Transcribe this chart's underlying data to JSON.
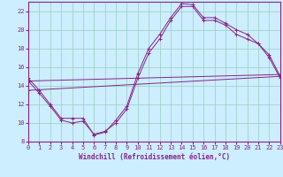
{
  "xlabel": "Windchill (Refroidissement éolien,°C)",
  "bg_color": "#cceeff",
  "line_color": "#882288",
  "grid_color": "#99ccbb",
  "xmin": 0,
  "xmax": 23,
  "ymin": 8,
  "ymax": 23,
  "yticks": [
    8,
    10,
    12,
    14,
    16,
    18,
    20,
    22
  ],
  "xticks": [
    0,
    1,
    2,
    3,
    4,
    5,
    6,
    7,
    8,
    9,
    10,
    11,
    12,
    13,
    14,
    15,
    16,
    17,
    18,
    19,
    20,
    21,
    22,
    23
  ],
  "series": [
    {
      "x": [
        0,
        1,
        2,
        3,
        4,
        5,
        6,
        7,
        8,
        9,
        10,
        11,
        12,
        13,
        14,
        15,
        16,
        17,
        18,
        19,
        20,
        21,
        22,
        23
      ],
      "y": [
        14.8,
        13.5,
        12.0,
        10.5,
        10.5,
        10.5,
        8.7,
        9.0,
        10.3,
        11.8,
        15.3,
        18.0,
        19.5,
        21.3,
        22.8,
        22.7,
        21.3,
        21.3,
        20.7,
        20.0,
        19.5,
        18.5,
        17.3,
        15.0
      ]
    },
    {
      "x": [
        0,
        1,
        2,
        3,
        4,
        5,
        6,
        7,
        8,
        9,
        10,
        11,
        12,
        13,
        14,
        15,
        16,
        17,
        18,
        19,
        20,
        21,
        22,
        23
      ],
      "y": [
        14.5,
        13.2,
        11.8,
        10.3,
        10.0,
        10.2,
        8.8,
        9.1,
        10.0,
        11.5,
        14.8,
        17.5,
        19.0,
        21.0,
        22.5,
        22.5,
        21.0,
        21.0,
        20.5,
        19.5,
        19.0,
        18.5,
        17.0,
        14.8
      ]
    },
    {
      "x": [
        0,
        23
      ],
      "y": [
        13.5,
        15.0
      ]
    },
    {
      "x": [
        0,
        23
      ],
      "y": [
        14.5,
        15.2
      ]
    }
  ]
}
